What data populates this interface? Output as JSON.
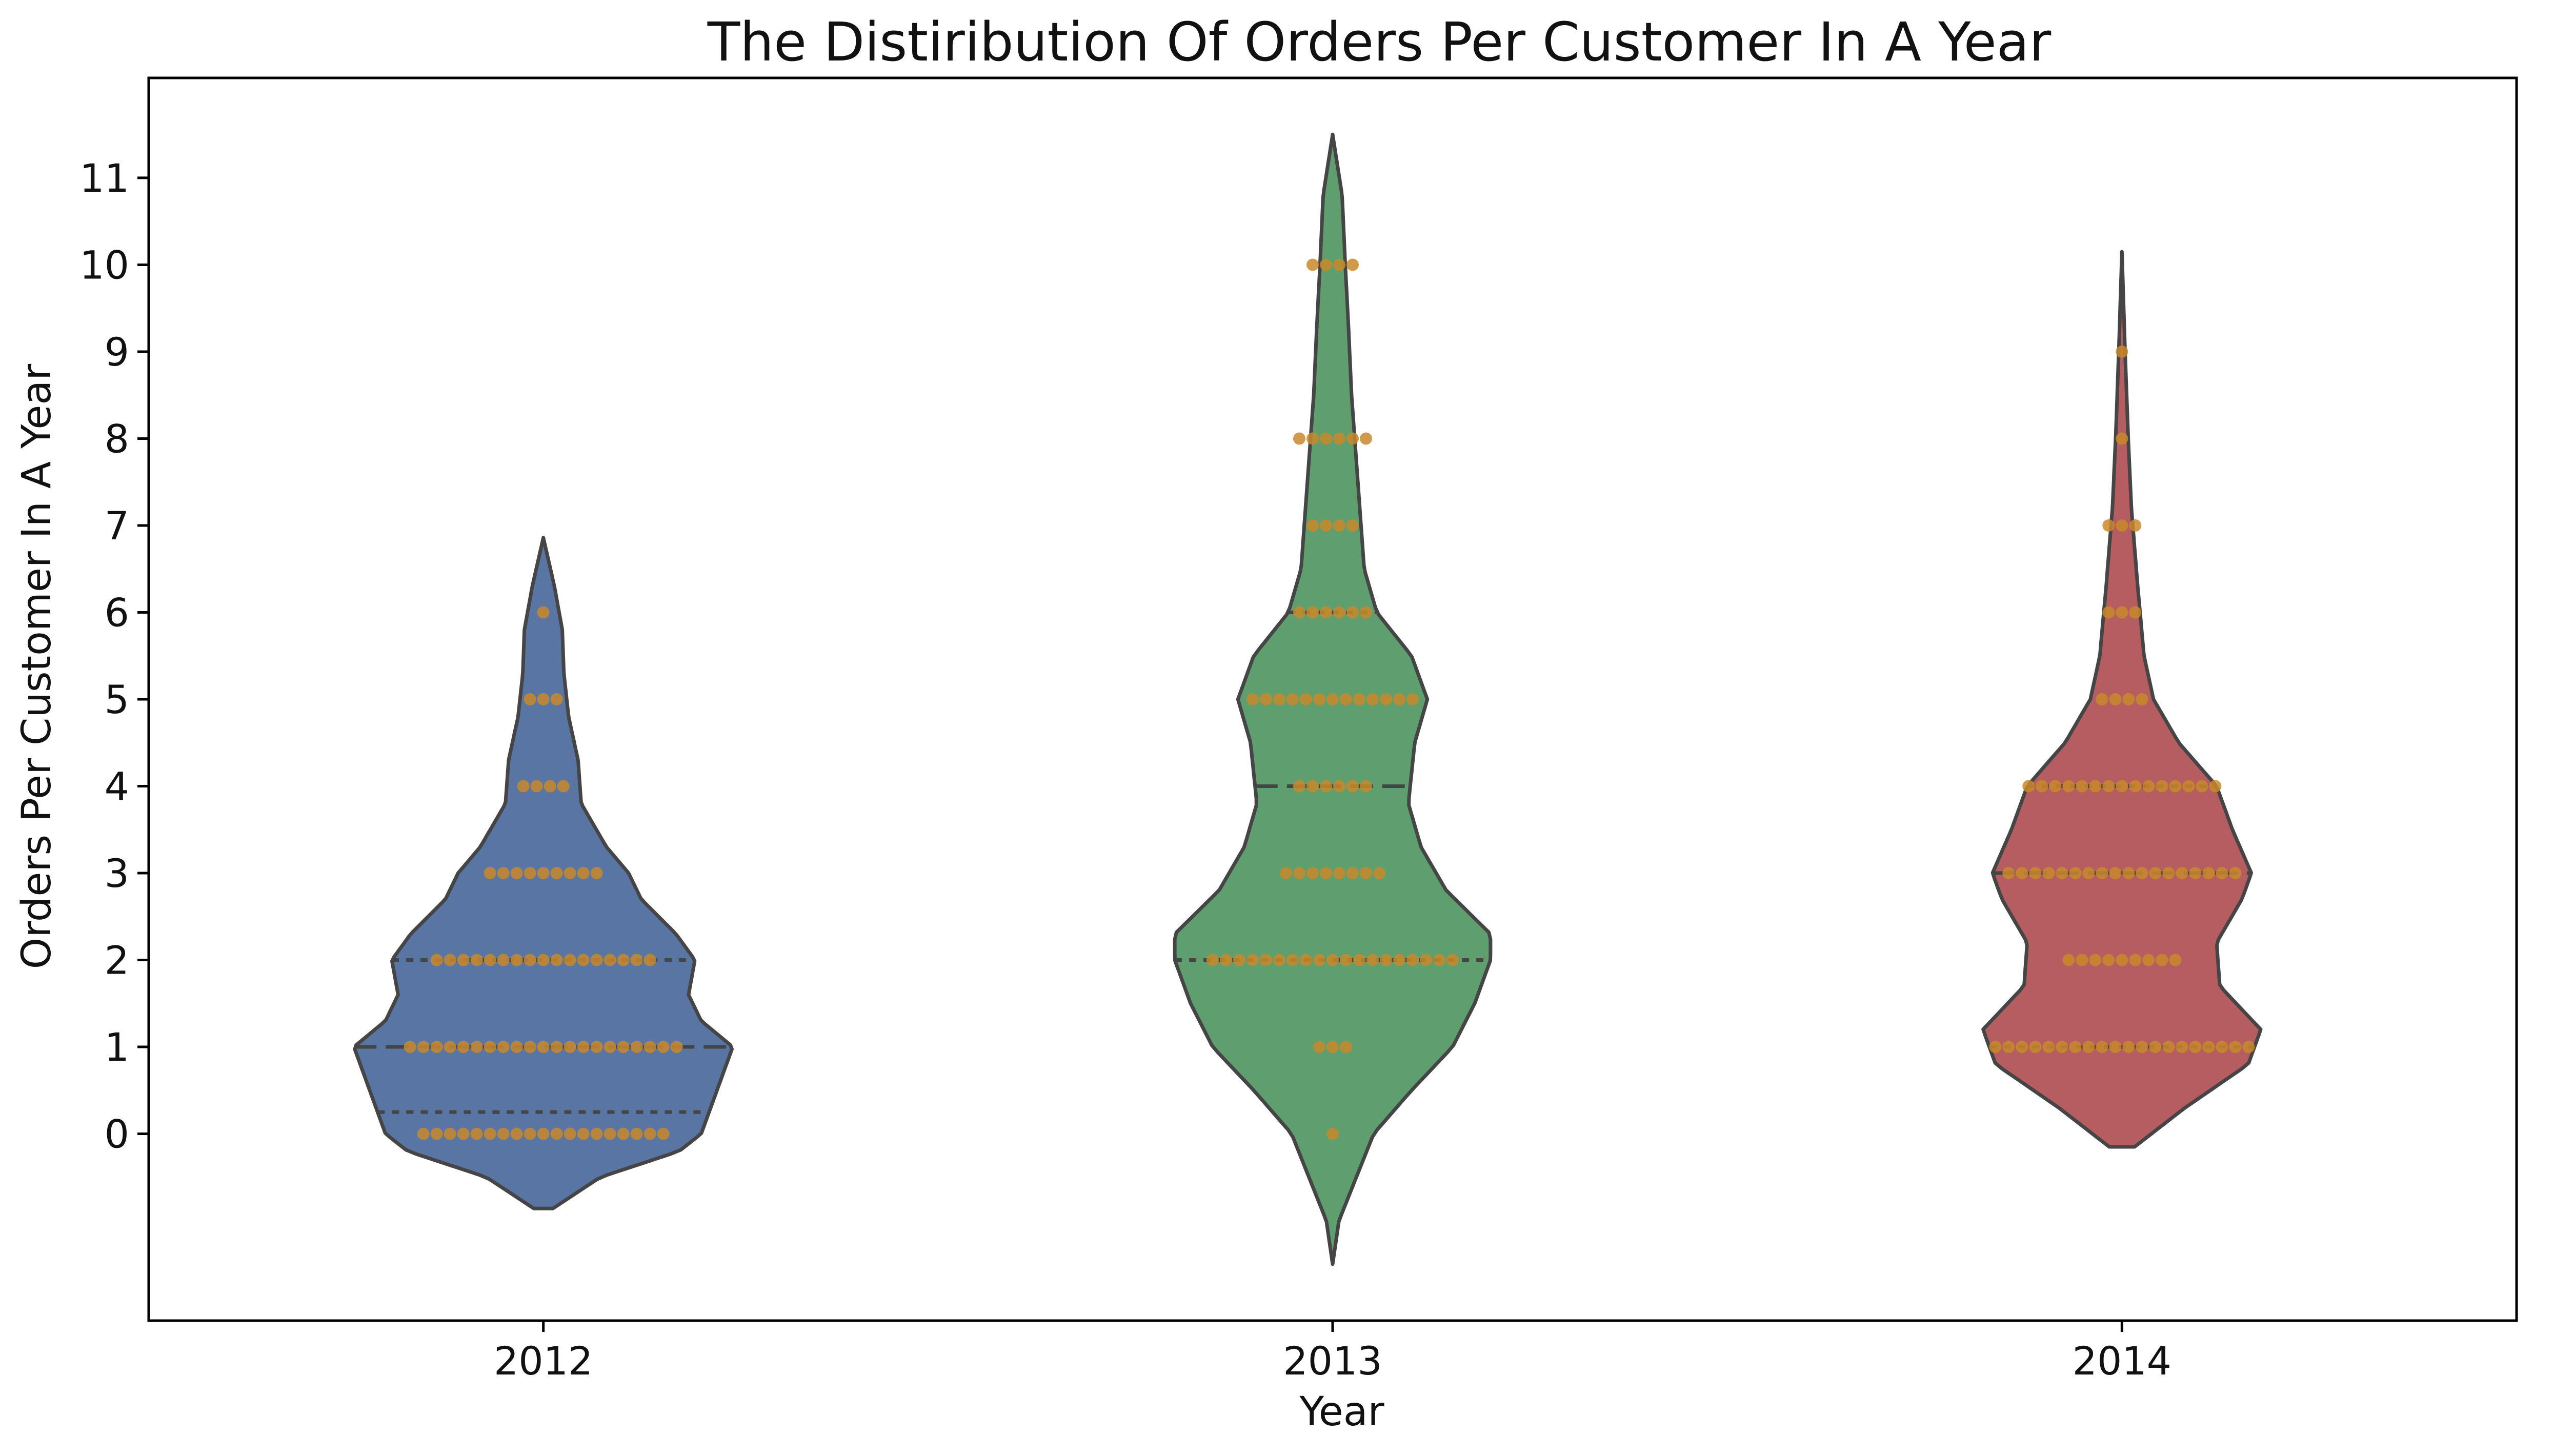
{
  "chart_data": {
    "type": "violin",
    "title": "The Distiribution Of Orders Per Customer In A Year",
    "xlabel": "Year",
    "ylabel": "Orders Per Customer In A Year",
    "categories": [
      "2012",
      "2013",
      "2014"
    ],
    "yticks": [
      0,
      1,
      2,
      3,
      4,
      5,
      6,
      7,
      8,
      9,
      10,
      11
    ],
    "ylim": [
      -2.15,
      12.15
    ],
    "grid": false,
    "legend": "none",
    "colors": {
      "2012": "#5875a4",
      "2013": "#5f9e6e",
      "2014": "#b55d60",
      "points": "#c8882a",
      "outline": "#454545",
      "quartile_lines": "#454545"
    },
    "violins": [
      {
        "category": "2012",
        "color": "#5875a4",
        "extent": [
          -0.86,
          6.86
        ],
        "quartiles": {
          "q1": 0.25,
          "median": 1.0,
          "q3": 2.0
        },
        "half_width_profile": [
          [
            -0.86,
            0.03
          ],
          [
            -0.5,
            0.18
          ],
          [
            -0.2,
            0.43
          ],
          [
            0.0,
            0.5
          ],
          [
            0.2,
            0.52
          ],
          [
            0.5,
            0.55
          ],
          [
            0.8,
            0.58
          ],
          [
            1.0,
            0.6
          ],
          [
            1.3,
            0.5
          ],
          [
            1.6,
            0.46
          ],
          [
            2.0,
            0.48
          ],
          [
            2.3,
            0.42
          ],
          [
            2.7,
            0.31
          ],
          [
            3.0,
            0.27
          ],
          [
            3.3,
            0.2
          ],
          [
            3.8,
            0.12
          ],
          [
            4.3,
            0.11
          ],
          [
            4.8,
            0.08
          ],
          [
            5.3,
            0.065
          ],
          [
            5.8,
            0.06
          ],
          [
            6.3,
            0.035
          ],
          [
            6.86,
            0.0
          ]
        ],
        "points": [
          {
            "y": 0,
            "count": 19
          },
          {
            "y": 1,
            "count": 21
          },
          {
            "y": 2,
            "count": 17
          },
          {
            "y": 3,
            "count": 9
          },
          {
            "y": 4,
            "count": 4
          },
          {
            "y": 5,
            "count": 3
          },
          {
            "y": 6,
            "count": 1
          }
        ]
      },
      {
        "category": "2013",
        "color": "#5f9e6e",
        "extent": [
          -1.5,
          11.5
        ],
        "quartiles": {
          "q1": 2.0,
          "median": 4.0,
          "q3": 6.0
        },
        "half_width_profile": [
          [
            -1.5,
            0.0
          ],
          [
            -1.0,
            0.02
          ],
          [
            0.0,
            0.13
          ],
          [
            0.5,
            0.25
          ],
          [
            1.0,
            0.38
          ],
          [
            1.5,
            0.45
          ],
          [
            2.0,
            0.5
          ],
          [
            2.3,
            0.5
          ],
          [
            2.8,
            0.36
          ],
          [
            3.3,
            0.28
          ],
          [
            3.8,
            0.24
          ],
          [
            4.5,
            0.26
          ],
          [
            5.0,
            0.3
          ],
          [
            5.5,
            0.25
          ],
          [
            6.0,
            0.14
          ],
          [
            6.5,
            0.1
          ],
          [
            7.5,
            0.08
          ],
          [
            8.5,
            0.06
          ],
          [
            9.3,
            0.05
          ],
          [
            10.0,
            0.04
          ],
          [
            10.8,
            0.03
          ],
          [
            11.5,
            0.0
          ]
        ],
        "points": [
          {
            "y": 0,
            "count": 1
          },
          {
            "y": 1,
            "count": 3
          },
          {
            "y": 2,
            "count": 19
          },
          {
            "y": 3,
            "count": 8
          },
          {
            "y": 4,
            "count": 6
          },
          {
            "y": 5,
            "count": 13
          },
          {
            "y": 6,
            "count": 6
          },
          {
            "y": 7,
            "count": 4
          },
          {
            "y": 8,
            "count": 6
          },
          {
            "y": 10,
            "count": 4
          }
        ]
      },
      {
        "category": "2014",
        "color": "#b55d60",
        "extent": [
          -0.15,
          10.15
        ],
        "quartiles": {
          "q1": 1.0,
          "median": 3.0,
          "q3": 4.0
        },
        "half_width_profile": [
          [
            -0.15,
            0.04
          ],
          [
            0.3,
            0.2
          ],
          [
            0.8,
            0.4
          ],
          [
            1.2,
            0.44
          ],
          [
            1.7,
            0.31
          ],
          [
            2.2,
            0.3
          ],
          [
            2.7,
            0.38
          ],
          [
            3.0,
            0.41
          ],
          [
            3.5,
            0.35
          ],
          [
            4.0,
            0.3
          ],
          [
            4.5,
            0.18
          ],
          [
            5.0,
            0.1
          ],
          [
            5.5,
            0.07
          ],
          [
            6.3,
            0.05
          ],
          [
            7.2,
            0.03
          ],
          [
            8.0,
            0.02
          ],
          [
            9.0,
            0.01
          ],
          [
            10.15,
            0.0
          ]
        ],
        "points": [
          {
            "y": 1,
            "count": 20
          },
          {
            "y": 2,
            "count": 9
          },
          {
            "y": 3,
            "count": 18
          },
          {
            "y": 4,
            "count": 15
          },
          {
            "y": 5,
            "count": 4
          },
          {
            "y": 6,
            "count": 3
          },
          {
            "y": 7,
            "count": 3
          },
          {
            "y": 8,
            "count": 1
          },
          {
            "y": 9,
            "count": 1
          }
        ]
      }
    ]
  }
}
